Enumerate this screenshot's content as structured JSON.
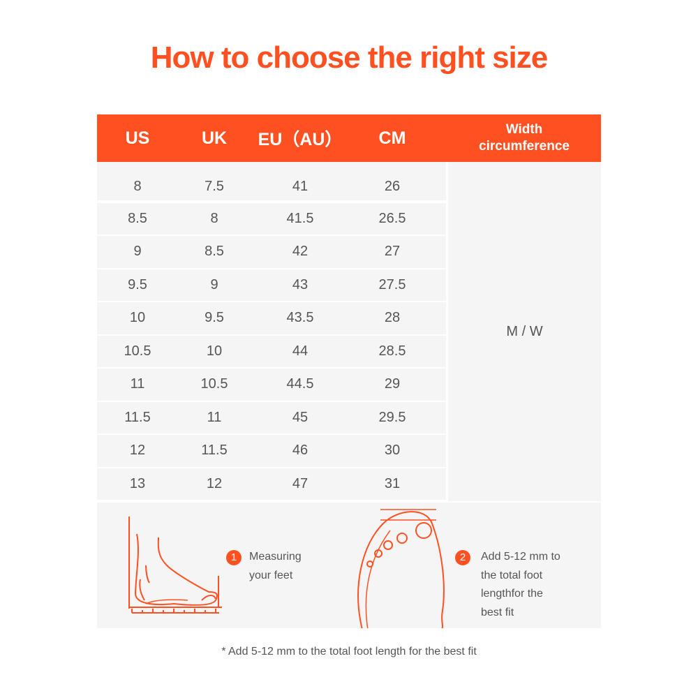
{
  "title": "How to choose the right size",
  "headers": [
    "US",
    "UK",
    "EU（AU）",
    "CM"
  ],
  "width_header": [
    "Width",
    "circumference"
  ],
  "rows": [
    [
      "8",
      "7.5",
      "41",
      "26"
    ],
    [
      "8.5",
      "8",
      "41.5",
      "26.5"
    ],
    [
      "9",
      "8.5",
      "42",
      "27"
    ],
    [
      "9.5",
      "9",
      "43",
      "27.5"
    ],
    [
      "10",
      "9.5",
      "43.5",
      "28"
    ],
    [
      "10.5",
      "10",
      "44",
      "28.5"
    ],
    [
      "11",
      "10.5",
      "44.5",
      "29"
    ],
    [
      "11.5",
      "11",
      "45",
      "29.5"
    ],
    [
      "12",
      "11.5",
      "46",
      "30"
    ],
    [
      "13",
      "12",
      "47",
      "31"
    ]
  ],
  "width_value": "M / W",
  "steps": [
    {
      "num": "1",
      "lines": [
        "Measuring",
        "your feet"
      ]
    },
    {
      "num": "2",
      "lines": [
        "Add 5-12 mm to",
        "the total foot",
        "lengthfor the",
        "best fit"
      ]
    }
  ],
  "note": "* Add 5-12 mm to the total foot length for the best fit",
  "colors": {
    "accent": "#ff5021",
    "row_bg": "#f5f5f5",
    "text": "#555555"
  }
}
